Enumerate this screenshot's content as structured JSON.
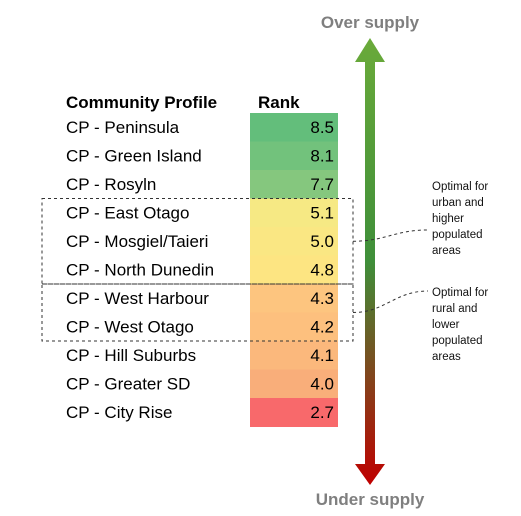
{
  "chart_data": {
    "type": "table",
    "headers": {
      "profile": "Community Profile",
      "rank": "Rank"
    },
    "rows": [
      {
        "label": "CP - Peninsula",
        "rank": 8.5,
        "display": "8.5",
        "color": "#63be7b"
      },
      {
        "label": "CP - Green Island",
        "rank": 8.1,
        "display": "8.1",
        "color": "#72c27c"
      },
      {
        "label": "CP - Rosyln",
        "rank": 7.7,
        "display": "7.7",
        "color": "#85c77e"
      },
      {
        "label": "CP - East Otago",
        "rank": 5.1,
        "display": "5.1",
        "color": "#f6e984"
      },
      {
        "label": "CP - Mosgiel/Taieri",
        "rank": 5.0,
        "display": "5.0",
        "color": "#fae783"
      },
      {
        "label": "CP - North Dunedin",
        "rank": 4.8,
        "display": "4.8",
        "color": "#fde582"
      },
      {
        "label": "CP - West Harbour",
        "rank": 4.3,
        "display": "4.3",
        "color": "#fdc57f"
      },
      {
        "label": "CP - West Otago",
        "rank": 4.2,
        "display": "4.2",
        "color": "#fdc07e"
      },
      {
        "label": "CP - Hill Suburbs",
        "rank": 4.1,
        "display": "4.1",
        "color": "#fbb87c"
      },
      {
        "label": "CP - Greater SD",
        "rank": 4.0,
        "display": "4.0",
        "color": "#f9ae7a"
      },
      {
        "label": "CP - City Rise",
        "rank": 2.7,
        "display": "2.7",
        "color": "#f8696b"
      }
    ],
    "groups": [
      {
        "first_row": 3,
        "last_row": 5,
        "lines": [
          "Optimal for",
          "urban and",
          "higher",
          "populated",
          "areas"
        ]
      },
      {
        "first_row": 6,
        "last_row": 7,
        "lines": [
          "Optimal for",
          "rural and",
          "lower",
          "populated",
          "areas"
        ]
      }
    ],
    "arrow": {
      "top_label": "Over supply",
      "bottom_label": "Under supply",
      "top_color": "#6aaa3a",
      "mid_color": "#3f8f3a",
      "bottom_color": "#c00000"
    },
    "label_color": "#7f7f7f"
  }
}
